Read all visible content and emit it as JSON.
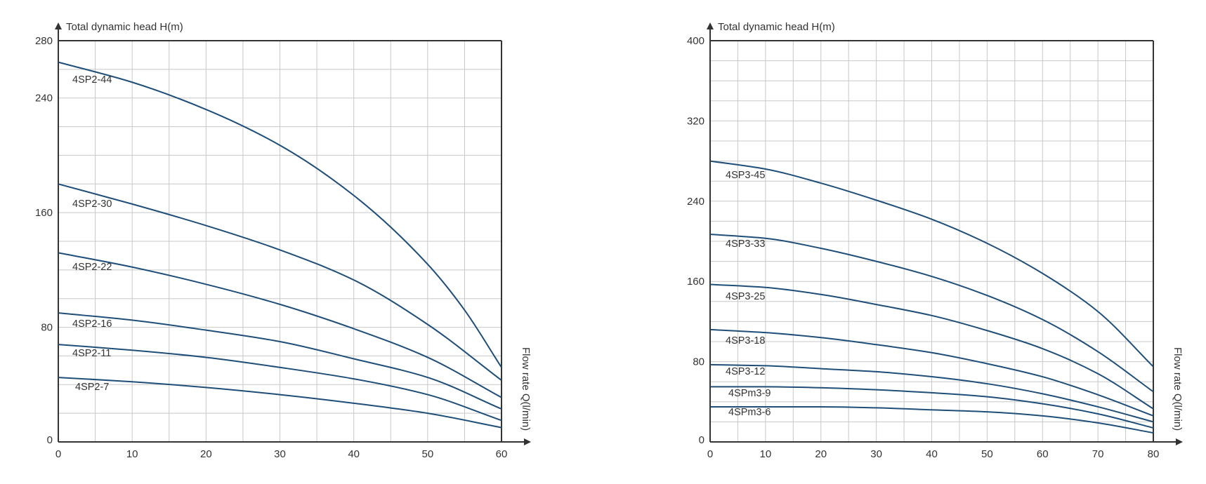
{
  "chart_data": [
    {
      "type": "line",
      "ylabel": "Total dynamic head H(m)",
      "xlabel": "Flow rate Q(l/min)",
      "xlim": [
        0,
        60
      ],
      "ylim": [
        0,
        280
      ],
      "x_ticks": [
        "0",
        "10",
        "20",
        "30",
        "40",
        "50",
        "60"
      ],
      "y_ticks": [
        "0",
        "80",
        "160",
        "240",
        "280"
      ],
      "grid": true,
      "series": [
        {
          "name": "4SP2-44",
          "x": [
            0,
            10,
            20,
            30,
            40,
            50,
            55,
            60
          ],
          "values": [
            265,
            251,
            232,
            207,
            172,
            124,
            92,
            52
          ]
        },
        {
          "name": "4SP2-30",
          "x": [
            0,
            10,
            20,
            30,
            40,
            50,
            60
          ],
          "values": [
            180,
            166,
            151,
            134,
            113,
            82,
            43
          ]
        },
        {
          "name": "4SP2-22",
          "x": [
            0,
            10,
            20,
            30,
            40,
            50,
            60
          ],
          "values": [
            132,
            122,
            110,
            96,
            79,
            59,
            31
          ]
        },
        {
          "name": "4SP2-16",
          "x": [
            0,
            10,
            20,
            30,
            40,
            50,
            60
          ],
          "values": [
            90,
            85,
            78,
            70,
            58,
            45,
            23
          ]
        },
        {
          "name": "4SP2-11",
          "x": [
            0,
            10,
            20,
            30,
            40,
            50,
            60
          ],
          "values": [
            68,
            64,
            59,
            52,
            44,
            33,
            15
          ]
        },
        {
          "name": "4SP2-7",
          "x": [
            0,
            10,
            20,
            30,
            40,
            50,
            60
          ],
          "values": [
            45,
            42,
            38,
            33,
            27,
            20,
            10
          ]
        }
      ]
    },
    {
      "type": "line",
      "ylabel": "Total dynamic head H(m)",
      "xlabel": "Flow rate Q(l/min)",
      "xlim": [
        0,
        80
      ],
      "ylim": [
        0,
        400
      ],
      "x_ticks": [
        "0",
        "10",
        "20",
        "30",
        "40",
        "50",
        "60",
        "70",
        "80"
      ],
      "y_ticks": [
        "0",
        "80",
        "160",
        "240",
        "320",
        "400"
      ],
      "grid": true,
      "series": [
        {
          "name": "4SP3-45",
          "x": [
            0,
            10,
            20,
            30,
            40,
            50,
            60,
            70,
            80
          ],
          "values": [
            280,
            272,
            258,
            241,
            222,
            198,
            168,
            130,
            75
          ]
        },
        {
          "name": "4SP3-33",
          "x": [
            0,
            10,
            20,
            30,
            40,
            50,
            60,
            70,
            80
          ],
          "values": [
            207,
            203,
            193,
            180,
            165,
            146,
            122,
            90,
            50
          ]
        },
        {
          "name": "4SP3-25",
          "x": [
            0,
            10,
            20,
            30,
            40,
            50,
            60,
            70,
            80
          ],
          "values": [
            157,
            154,
            147,
            137,
            126,
            111,
            93,
            68,
            33
          ]
        },
        {
          "name": "4SP3-18",
          "x": [
            0,
            10,
            20,
            30,
            40,
            50,
            60,
            70,
            80
          ],
          "values": [
            112,
            109,
            104,
            97,
            89,
            78,
            65,
            47,
            26
          ]
        },
        {
          "name": "4SP3-12",
          "x": [
            0,
            10,
            20,
            30,
            40,
            50,
            60,
            70,
            80
          ],
          "values": [
            77,
            76,
            73,
            70,
            65,
            58,
            48,
            35,
            20
          ]
        },
        {
          "name": "4SPm3-9",
          "x": [
            0,
            10,
            20,
            30,
            40,
            50,
            60,
            70,
            80
          ],
          "values": [
            55,
            55,
            54,
            52,
            49,
            45,
            38,
            28,
            14
          ]
        },
        {
          "name": "4SPm3-6",
          "x": [
            0,
            10,
            20,
            30,
            40,
            50,
            60,
            70,
            80
          ],
          "values": [
            35,
            35,
            35,
            34,
            32,
            30,
            26,
            19,
            9
          ]
        }
      ]
    }
  ],
  "colors": {
    "curve": "#1f4e79",
    "grid": "#c8c8c8",
    "axis": "#333333"
  }
}
